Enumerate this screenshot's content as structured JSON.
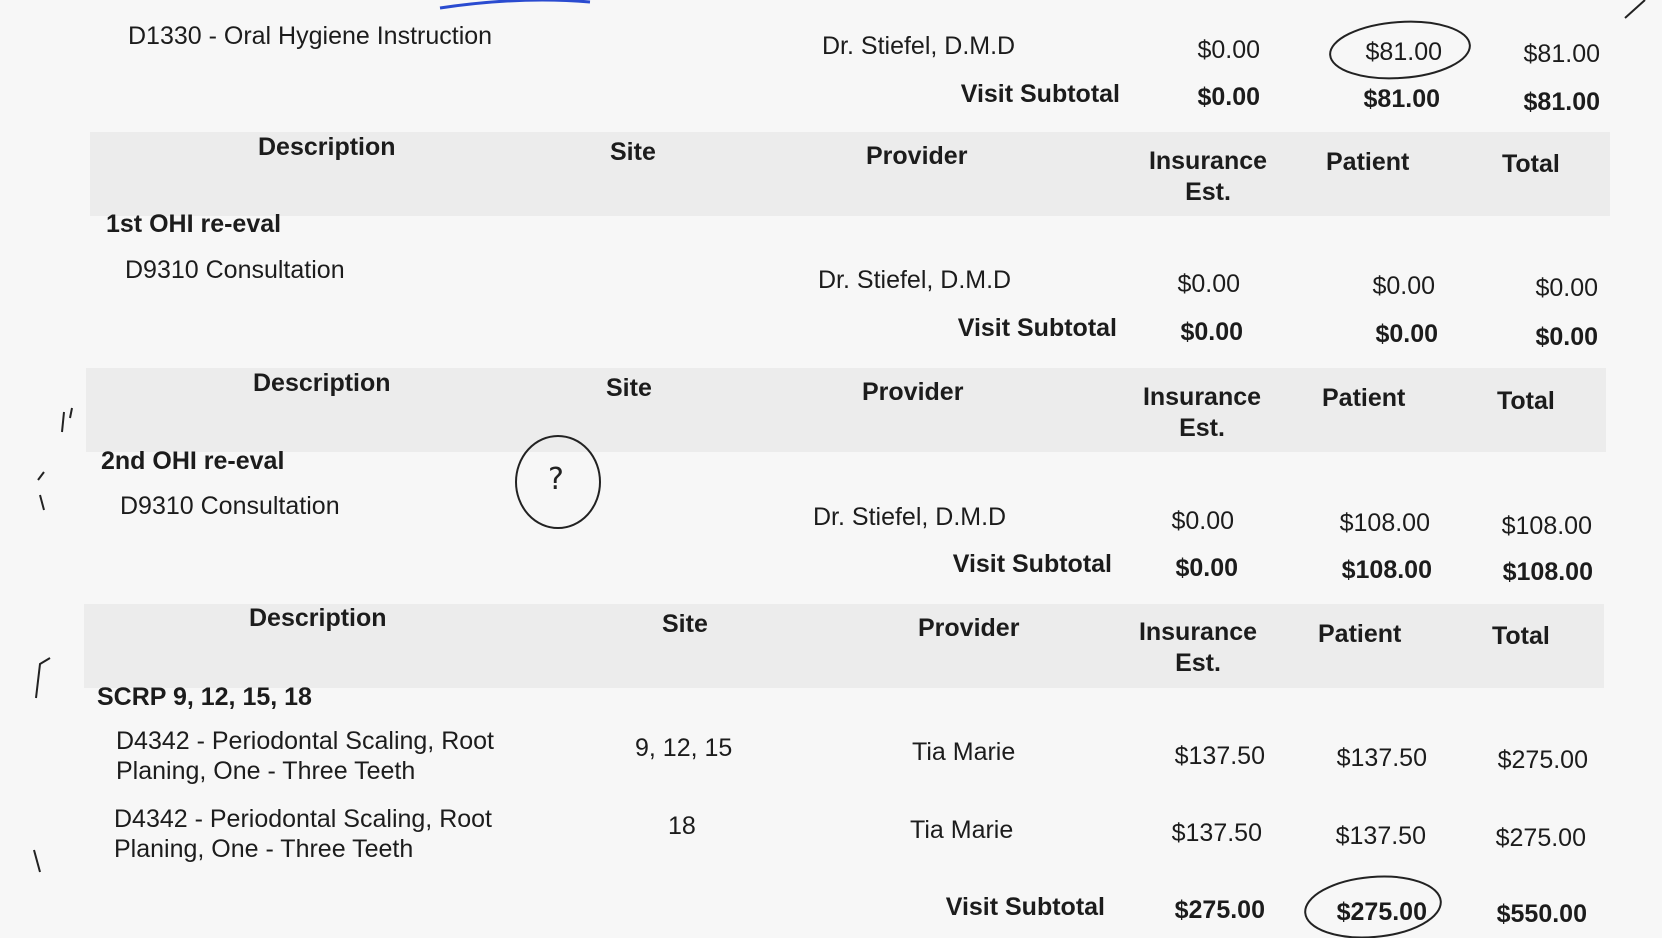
{
  "headers": {
    "description": "Description",
    "site": "Site",
    "provider": "Provider",
    "insurance": "Insurance Est.",
    "insurance_l1": "Insurance",
    "insurance_l2": "Est.",
    "patient": "Patient",
    "total": "Total"
  },
  "subtotal_label": "Visit Subtotal",
  "sections": [
    {
      "rows": [
        {
          "description": "D1330 - Oral Hygiene Instruction",
          "site": "",
          "provider": "Dr. Stiefel, D.M.D",
          "insurance": "$0.00",
          "patient": "$81.00",
          "total": "$81.00"
        }
      ],
      "subtotal": {
        "insurance": "$0.00",
        "patient": "$81.00",
        "total": "$81.00"
      }
    },
    {
      "group": "1st OHI re-eval",
      "rows": [
        {
          "description": "D9310 Consultation",
          "site": "",
          "provider": "Dr. Stiefel, D.M.D",
          "insurance": "$0.00",
          "patient": "$0.00",
          "total": "$0.00"
        }
      ],
      "subtotal": {
        "insurance": "$0.00",
        "patient": "$0.00",
        "total": "$0.00"
      }
    },
    {
      "group": "2nd OHI re-eval",
      "rows": [
        {
          "description": "D9310 Consultation",
          "site": "",
          "provider": "Dr. Stiefel, D.M.D",
          "insurance": "$0.00",
          "patient": "$108.00",
          "total": "$108.00"
        }
      ],
      "subtotal": {
        "insurance": "$0.00",
        "patient": "$108.00",
        "total": "$108.00"
      }
    },
    {
      "group": "SCRP 9, 12, 15, 18",
      "rows": [
        {
          "description_l1": "D4342 - Periodontal Scaling, Root",
          "description_l2": "Planing, One - Three Teeth",
          "site": "9, 12, 15",
          "provider": "Tia Marie",
          "insurance": "$137.50",
          "patient": "$137.50",
          "total": "$275.00"
        },
        {
          "description_l1": "D4342 - Periodontal Scaling, Root",
          "description_l2": "Planing, One - Three Teeth",
          "site": "18",
          "provider": "Tia Marie",
          "insurance": "$137.50",
          "patient": "$137.50",
          "total": "$275.00"
        }
      ],
      "subtotal": {
        "insurance": "$275.00",
        "patient": "$275.00",
        "total": "$550.00"
      }
    }
  ],
  "handwritten": {
    "question_mark": "?"
  },
  "colors": {
    "paper": "#f7f7f7",
    "header_band": "#ececec",
    "ink": "#1c1c1c",
    "pen": "#222222",
    "blue_pen": "#2a4bd0"
  }
}
